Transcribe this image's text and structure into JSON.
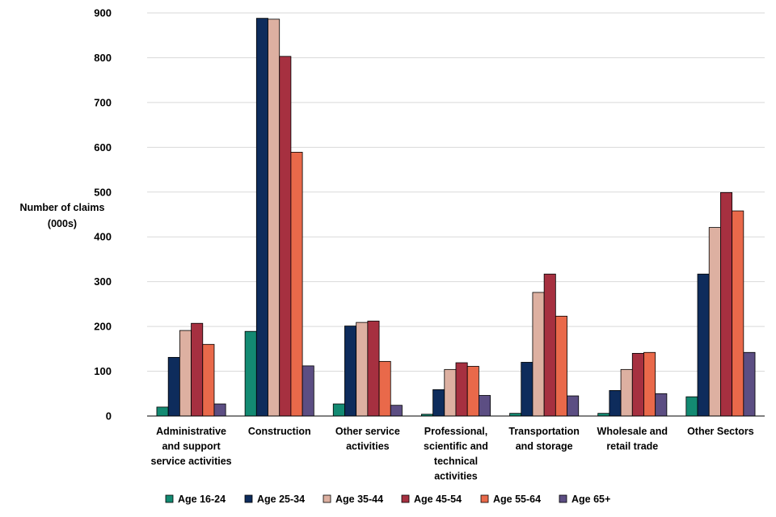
{
  "chart_data": {
    "type": "bar",
    "title": "",
    "ylabel_lines": [
      "Number of claims",
      "(000s)"
    ],
    "xlabel": "",
    "ylim": [
      0,
      900
    ],
    "yticks": [
      0,
      100,
      200,
      300,
      400,
      500,
      600,
      700,
      800,
      900
    ],
    "grid": "horizontal",
    "legend_position": "bottom",
    "categories": [
      [
        "Administrative",
        "and support",
        "service activities"
      ],
      [
        "Construction"
      ],
      [
        "Other service",
        "activities"
      ],
      [
        "Professional,",
        "scientific and",
        "technical",
        "activities"
      ],
      [
        "Transportation",
        "and storage"
      ],
      [
        "Wholesale and",
        "retail trade"
      ],
      [
        "Other Sectors"
      ]
    ],
    "series": [
      {
        "name": "Age 16-24",
        "color": "#138A72",
        "values": [
          20,
          189,
          27,
          4,
          6,
          6,
          43
        ]
      },
      {
        "name": "Age 25-34",
        "color": "#0E2C5C",
        "values": [
          131,
          888,
          201,
          59,
          120,
          57,
          317
        ]
      },
      {
        "name": "Age 35-44",
        "color": "#DDB0A1",
        "values": [
          191,
          886,
          209,
          104,
          276,
          104,
          421
        ]
      },
      {
        "name": "Age 45-54",
        "color": "#A63040",
        "values": [
          207,
          803,
          212,
          119,
          317,
          140,
          499
        ]
      },
      {
        "name": "Age 55-64",
        "color": "#E9694A",
        "values": [
          160,
          589,
          122,
          111,
          223,
          142,
          458
        ]
      },
      {
        "name": "Age 65+",
        "color": "#5C4E83",
        "values": [
          27,
          112,
          24,
          46,
          45,
          50,
          142
        ]
      }
    ]
  }
}
